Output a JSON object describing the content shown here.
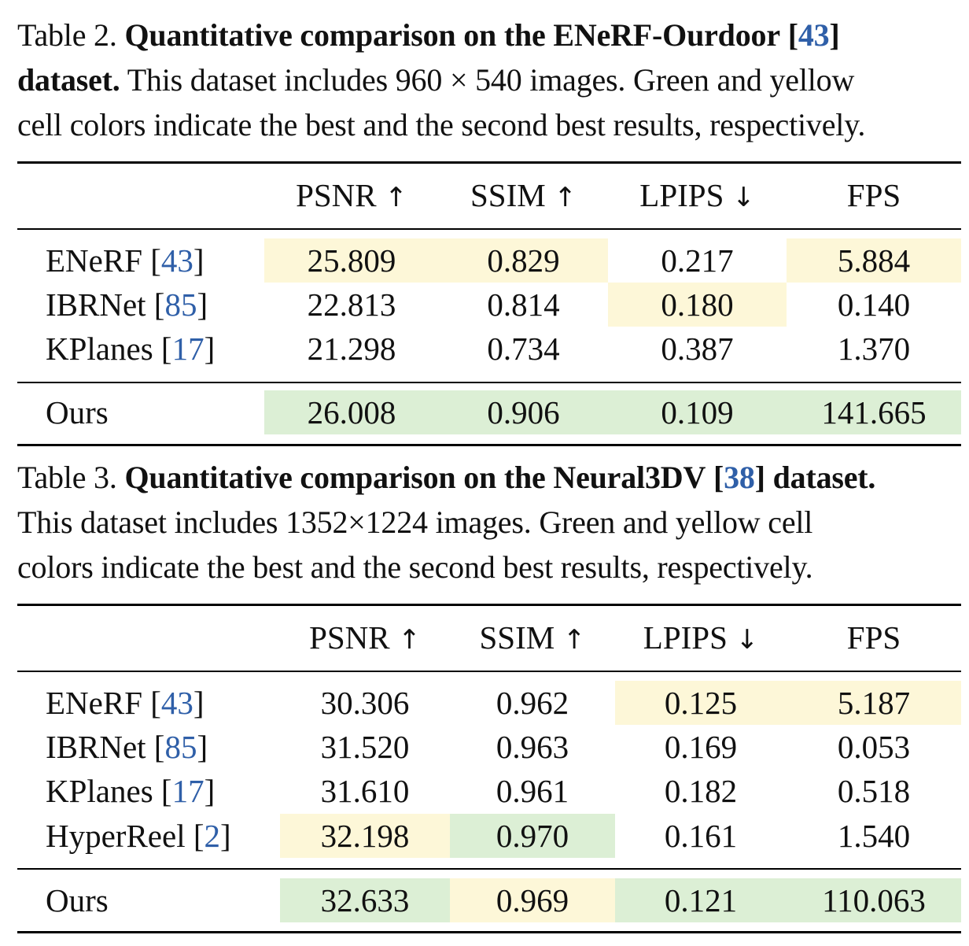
{
  "table2": {
    "caption_label": "Table 2.",
    "caption_bold_1": "Quantitative comparison on the ENeRF-Ourdoor",
    "caption_cite": "43",
    "caption_bold_2": "dataset.",
    "caption_text_1": "This dataset includes 960 × 540 images. Green and yellow",
    "caption_text_2": "cell colors indicate the best and the second best results, respectively.",
    "headers": [
      "PSNR ↑",
      "SSIM ↑",
      "LPIPS ↓",
      "FPS"
    ],
    "rows": [
      {
        "method": "ENeRF",
        "cite": "43",
        "values": [
          "25.809",
          "0.829",
          "0.217",
          "5.884"
        ],
        "highlight": [
          "second",
          "second",
          "",
          "second"
        ]
      },
      {
        "method": "IBRNet",
        "cite": "85",
        "values": [
          "22.813",
          "0.814",
          "0.180",
          "0.140"
        ],
        "highlight": [
          "",
          "",
          "second",
          ""
        ]
      },
      {
        "method": "KPlanes",
        "cite": "17",
        "values": [
          "21.298",
          "0.734",
          "0.387",
          "1.370"
        ],
        "highlight": [
          "",
          "",
          "",
          ""
        ]
      },
      {
        "method": "Ours",
        "cite": "",
        "values": [
          "26.008",
          "0.906",
          "0.109",
          "141.665"
        ],
        "highlight": [
          "best",
          "best",
          "best",
          "best"
        ]
      }
    ]
  },
  "table3": {
    "caption_label": "Table 3.",
    "caption_bold_1": "Quantitative comparison on the Neural3DV",
    "caption_cite": "38",
    "caption_bold_2": "dataset.",
    "caption_text_1": "This dataset includes 1352×1224 images. Green and yellow cell",
    "caption_text_2": "colors indicate the best and the second best results, respectively.",
    "headers": [
      "PSNR ↑",
      "SSIM ↑",
      "LPIPS ↓",
      "FPS"
    ],
    "rows": [
      {
        "method": "ENeRF",
        "cite": "43",
        "values": [
          "30.306",
          "0.962",
          "0.125",
          "5.187"
        ],
        "highlight": [
          "",
          "",
          "second",
          "second"
        ]
      },
      {
        "method": "IBRNet",
        "cite": "85",
        "values": [
          "31.520",
          "0.963",
          "0.169",
          "0.053"
        ],
        "highlight": [
          "",
          "",
          "",
          ""
        ]
      },
      {
        "method": "KPlanes",
        "cite": "17",
        "values": [
          "31.610",
          "0.961",
          "0.182",
          "0.518"
        ],
        "highlight": [
          "",
          "",
          "",
          ""
        ]
      },
      {
        "method": "HyperReel",
        "cite": "2",
        "values": [
          "32.198",
          "0.970",
          "0.161",
          "1.540"
        ],
        "highlight": [
          "second",
          "best",
          "",
          ""
        ]
      },
      {
        "method": "Ours",
        "cite": "",
        "values": [
          "32.633",
          "0.969",
          "0.121",
          "110.063"
        ],
        "highlight": [
          "best",
          "second",
          "best",
          "best"
        ]
      }
    ]
  },
  "colors": {
    "best": "#dcefd5",
    "second": "#fdf7d8"
  }
}
